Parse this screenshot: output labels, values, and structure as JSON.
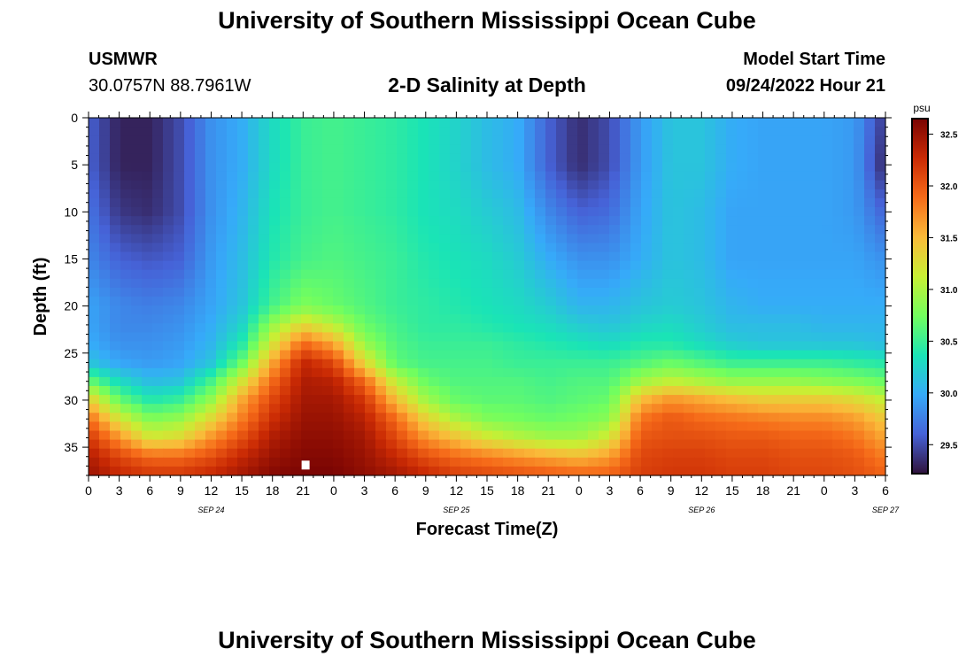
{
  "header": {
    "title": "University of Southern Mississippi Ocean Cube",
    "station_name": "USMWR",
    "station_coords": "30.0757N  88.7961W",
    "plot_title": "2-D Salinity at Depth",
    "model_start_label": "Model Start Time",
    "model_start_value": "09/24/2022 Hour 21"
  },
  "footer": {
    "title": "University of Southern Mississippi Ocean Cube"
  },
  "chart_data": {
    "type": "heatmap",
    "xlabel": "Forecast Time(Z)",
    "ylabel": "Depth (ft)",
    "colorbar_unit": "psu",
    "x_tick_labels": [
      "0",
      "3",
      "6",
      "9",
      "12",
      "15",
      "18",
      "21",
      "0",
      "3",
      "6",
      "9",
      "12",
      "15",
      "18",
      "21",
      "0",
      "3",
      "6",
      "9",
      "12",
      "15",
      "18",
      "21",
      "0",
      "3",
      "6"
    ],
    "x_date_labels": [
      {
        "label": "SEP 24",
        "hour": 12
      },
      {
        "label": "SEP 25",
        "hour": 36
      },
      {
        "label": "SEP 26",
        "hour": 60
      },
      {
        "label": "SEP 27",
        "hour": 78
      }
    ],
    "x_hours_range": [
      0,
      78
    ],
    "y_ticks": [
      0,
      5,
      10,
      15,
      20,
      25,
      30,
      35
    ],
    "ylim": [
      0,
      38
    ],
    "y_inverted": true,
    "colorbar_ticks": [
      29.5,
      30.0,
      30.5,
      31.0,
      31.5,
      32.0,
      32.5
    ],
    "value_range": [
      29.22,
      32.65
    ],
    "colormap": [
      "#30123b",
      "#4662d7",
      "#36aaf9",
      "#1ae4b6",
      "#72fe5e",
      "#c8ef34",
      "#faba39",
      "#f66b19",
      "#ca2a04",
      "#7a0403"
    ],
    "marker": {
      "hour": 21.2,
      "depth": 36.9,
      "color": "#ffffff"
    },
    "grid": false,
    "depths": [
      0,
      5,
      10,
      15,
      20,
      22,
      24,
      26,
      28,
      30,
      32,
      34,
      36,
      38
    ],
    "hours": [
      0,
      3,
      6,
      9,
      12,
      15,
      18,
      21,
      24,
      27,
      30,
      33,
      36,
      39,
      42,
      45,
      48,
      51,
      54,
      57,
      60,
      63,
      66,
      69,
      72,
      75,
      78
    ],
    "salinity": [
      [
        29.6,
        29.3,
        29.3,
        29.5,
        29.85,
        30.0,
        30.3,
        30.5,
        30.55,
        30.5,
        30.45,
        30.35,
        30.25,
        30.1,
        30.0,
        29.6,
        29.35,
        29.5,
        29.9,
        30.15,
        30.15,
        30.0,
        29.95,
        29.95,
        29.95,
        29.9,
        29.4
      ],
      [
        29.6,
        29.3,
        29.3,
        29.5,
        29.85,
        30.0,
        30.3,
        30.5,
        30.55,
        30.5,
        30.45,
        30.35,
        30.25,
        30.1,
        30.0,
        29.6,
        29.35,
        29.5,
        29.9,
        30.15,
        30.15,
        30.0,
        29.95,
        29.95,
        29.95,
        29.9,
        29.3
      ],
      [
        29.7,
        29.4,
        29.35,
        29.5,
        29.85,
        30.05,
        30.35,
        30.5,
        30.55,
        30.5,
        30.45,
        30.35,
        30.3,
        30.2,
        30.1,
        29.8,
        29.6,
        29.65,
        29.95,
        30.15,
        30.1,
        29.95,
        29.95,
        29.95,
        29.95,
        29.9,
        29.6
      ],
      [
        29.8,
        29.6,
        29.55,
        29.6,
        29.9,
        30.1,
        30.4,
        30.55,
        30.6,
        30.55,
        30.5,
        30.4,
        30.35,
        30.3,
        30.2,
        30.0,
        29.85,
        29.85,
        30.0,
        30.15,
        30.1,
        29.95,
        29.95,
        29.95,
        29.95,
        29.95,
        29.85
      ],
      [
        29.95,
        29.8,
        29.75,
        29.8,
        29.95,
        30.15,
        30.55,
        30.8,
        30.7,
        30.6,
        30.5,
        30.45,
        30.4,
        30.35,
        30.3,
        30.2,
        30.05,
        30.05,
        30.15,
        30.2,
        30.15,
        30.05,
        30.0,
        30.0,
        30.0,
        30.0,
        30.0
      ],
      [
        29.95,
        29.8,
        29.8,
        29.85,
        30.0,
        30.25,
        30.9,
        31.3,
        31.05,
        30.7,
        30.55,
        30.45,
        30.45,
        30.4,
        30.35,
        30.3,
        30.2,
        30.15,
        30.25,
        30.3,
        30.2,
        30.1,
        30.1,
        30.1,
        30.05,
        30.05,
        30.05
      ],
      [
        30.0,
        29.85,
        29.85,
        29.9,
        30.05,
        30.4,
        31.2,
        31.9,
        31.6,
        30.9,
        30.6,
        30.5,
        30.5,
        30.5,
        30.45,
        30.4,
        30.35,
        30.3,
        30.4,
        30.4,
        30.3,
        30.2,
        30.15,
        30.15,
        30.15,
        30.15,
        30.1
      ],
      [
        30.15,
        29.95,
        29.9,
        29.95,
        30.15,
        30.7,
        31.6,
        32.3,
        32.1,
        31.3,
        30.65,
        30.55,
        30.55,
        30.55,
        30.5,
        30.5,
        30.5,
        30.5,
        30.6,
        30.7,
        30.6,
        30.5,
        30.5,
        30.5,
        30.5,
        30.45,
        30.4
      ],
      [
        30.7,
        30.3,
        30.1,
        30.15,
        30.55,
        31.2,
        31.9,
        32.4,
        32.35,
        31.9,
        31.1,
        30.7,
        30.6,
        30.6,
        30.6,
        30.55,
        30.6,
        30.6,
        30.95,
        31.1,
        31.0,
        30.9,
        30.9,
        30.9,
        30.85,
        30.8,
        30.7
      ],
      [
        31.4,
        30.7,
        30.4,
        30.5,
        30.9,
        31.6,
        32.1,
        32.45,
        32.45,
        32.2,
        31.5,
        30.95,
        30.7,
        30.65,
        30.65,
        30.6,
        30.65,
        30.7,
        31.5,
        31.7,
        31.6,
        31.5,
        31.4,
        31.4,
        31.4,
        31.3,
        31.1
      ],
      [
        31.9,
        31.2,
        30.8,
        30.9,
        31.3,
        31.8,
        32.25,
        32.5,
        32.5,
        32.35,
        31.9,
        31.35,
        31.0,
        30.8,
        30.75,
        30.7,
        30.75,
        30.85,
        31.85,
        32.0,
        31.9,
        31.85,
        31.8,
        31.75,
        31.75,
        31.65,
        31.4
      ],
      [
        32.2,
        31.7,
        31.2,
        31.3,
        31.7,
        32.05,
        32.4,
        32.55,
        32.55,
        32.45,
        32.1,
        31.7,
        31.45,
        31.2,
        31.05,
        30.95,
        30.95,
        31.2,
        32.0,
        32.05,
        32.05,
        32.0,
        32.0,
        31.95,
        31.95,
        31.85,
        31.6
      ],
      [
        32.4,
        32.1,
        31.9,
        31.9,
        32.05,
        32.3,
        32.5,
        32.6,
        32.6,
        32.5,
        32.3,
        32.05,
        31.9,
        31.8,
        31.7,
        31.6,
        31.5,
        31.65,
        32.1,
        32.15,
        32.15,
        32.1,
        32.1,
        32.05,
        32.05,
        32.0,
        31.8
      ],
      [
        32.5,
        32.3,
        32.2,
        32.2,
        32.3,
        32.45,
        32.6,
        32.65,
        32.65,
        32.55,
        32.45,
        32.3,
        32.15,
        32.1,
        32.05,
        32.0,
        31.95,
        31.95,
        32.15,
        32.2,
        32.2,
        32.15,
        32.15,
        32.1,
        32.1,
        32.05,
        31.95
      ]
    ]
  }
}
